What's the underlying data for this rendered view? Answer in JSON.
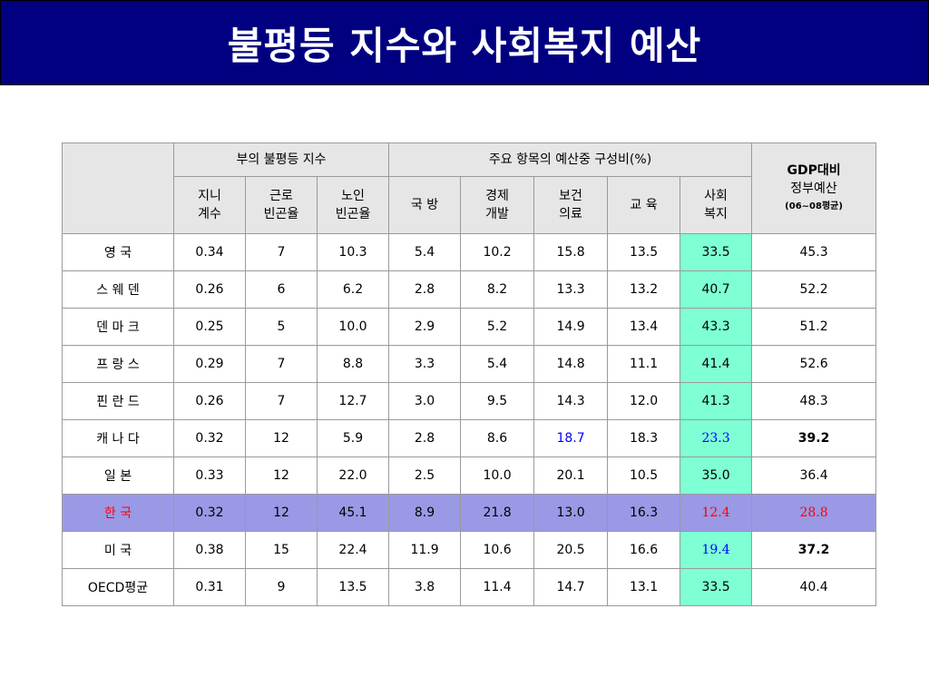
{
  "title": "불평등 지수와 사회복지 예산",
  "table": {
    "group_headers": {
      "inequality": "부의 불평등 지수",
      "budget": "주요 항목의 예산중 구성비(%)",
      "gdp": [
        "GDP대비",
        "정부예산",
        "(06~08평균)"
      ]
    },
    "sub_headers": {
      "gini": [
        "지니",
        "계수"
      ],
      "working_poverty": [
        "근로",
        "빈곤율"
      ],
      "elderly_poverty": [
        "노인",
        "빈곤율"
      ],
      "defense": [
        "국 방"
      ],
      "economic": [
        "경제",
        "개발"
      ],
      "health": [
        "보건",
        "의료"
      ],
      "education": [
        "교 육"
      ],
      "welfare": [
        "사회",
        "복지"
      ]
    },
    "rows": [
      {
        "country": "영 국",
        "gini": "0.34",
        "work": "7",
        "elder": "10.3",
        "defense": "5.4",
        "econ": "10.2",
        "health": "15.8",
        "edu": "13.5",
        "welfare": "33.5",
        "gdp": "45.3"
      },
      {
        "country": "스 웨 덴",
        "gini": "0.26",
        "work": "6",
        "elder": "6.2",
        "defense": "2.8",
        "econ": "8.2",
        "health": "13.3",
        "edu": "13.2",
        "welfare": "40.7",
        "gdp": "52.2"
      },
      {
        "country": "덴 마 크",
        "gini": "0.25",
        "work": "5",
        "elder": "10.0",
        "defense": "2.9",
        "econ": "5.2",
        "health": "14.9",
        "edu": "13.4",
        "welfare": "43.3",
        "gdp": "51.2"
      },
      {
        "country": "프 랑 스",
        "gini": "0.29",
        "work": "7",
        "elder": "8.8",
        "defense": "3.3",
        "econ": "5.4",
        "health": "14.8",
        "edu": "11.1",
        "welfare": "41.4",
        "gdp": "52.6"
      },
      {
        "country": "핀 란 드",
        "gini": "0.26",
        "work": "7",
        "elder": "12.7",
        "defense": "3.0",
        "econ": "9.5",
        "health": "14.3",
        "edu": "12.0",
        "welfare": "41.3",
        "gdp": "48.3"
      },
      {
        "country": "캐 나 다",
        "gini": "0.32",
        "work": "12",
        "elder": "5.9",
        "defense": "2.8",
        "econ": "8.6",
        "health": "18.7",
        "edu": "18.3",
        "welfare": "23.3",
        "gdp": "39.2"
      },
      {
        "country": "일 본",
        "gini": "0.33",
        "work": "12",
        "elder": "22.0",
        "defense": "2.5",
        "econ": "10.0",
        "health": "20.1",
        "edu": "10.5",
        "welfare": "35.0",
        "gdp": "36.4"
      },
      {
        "country": "한 국",
        "gini": "0.32",
        "work": "12",
        "elder": "45.1",
        "defense": "8.9",
        "econ": "21.8",
        "health": "13.0",
        "edu": "16.3",
        "welfare": "12.4",
        "gdp": "28.8"
      },
      {
        "country": "미 국",
        "gini": "0.38",
        "work": "15",
        "elder": "22.4",
        "defense": "11.9",
        "econ": "10.6",
        "health": "20.5",
        "edu": "16.6",
        "welfare": "19.4",
        "gdp": "37.2"
      },
      {
        "country": "OECD평균",
        "gini": "0.31",
        "work": "9",
        "elder": "13.5",
        "defense": "3.8",
        "econ": "11.4",
        "health": "14.7",
        "edu": "13.1",
        "welfare": "33.5",
        "gdp": "40.4"
      }
    ]
  },
  "colors": {
    "title_bar": "#000080",
    "header_bg": "#e6e6e6",
    "welfare_highlight": "#7fffd4",
    "korea_row": "#9999e6",
    "red_text": "#ff0000",
    "blue_text": "#0000ff"
  }
}
